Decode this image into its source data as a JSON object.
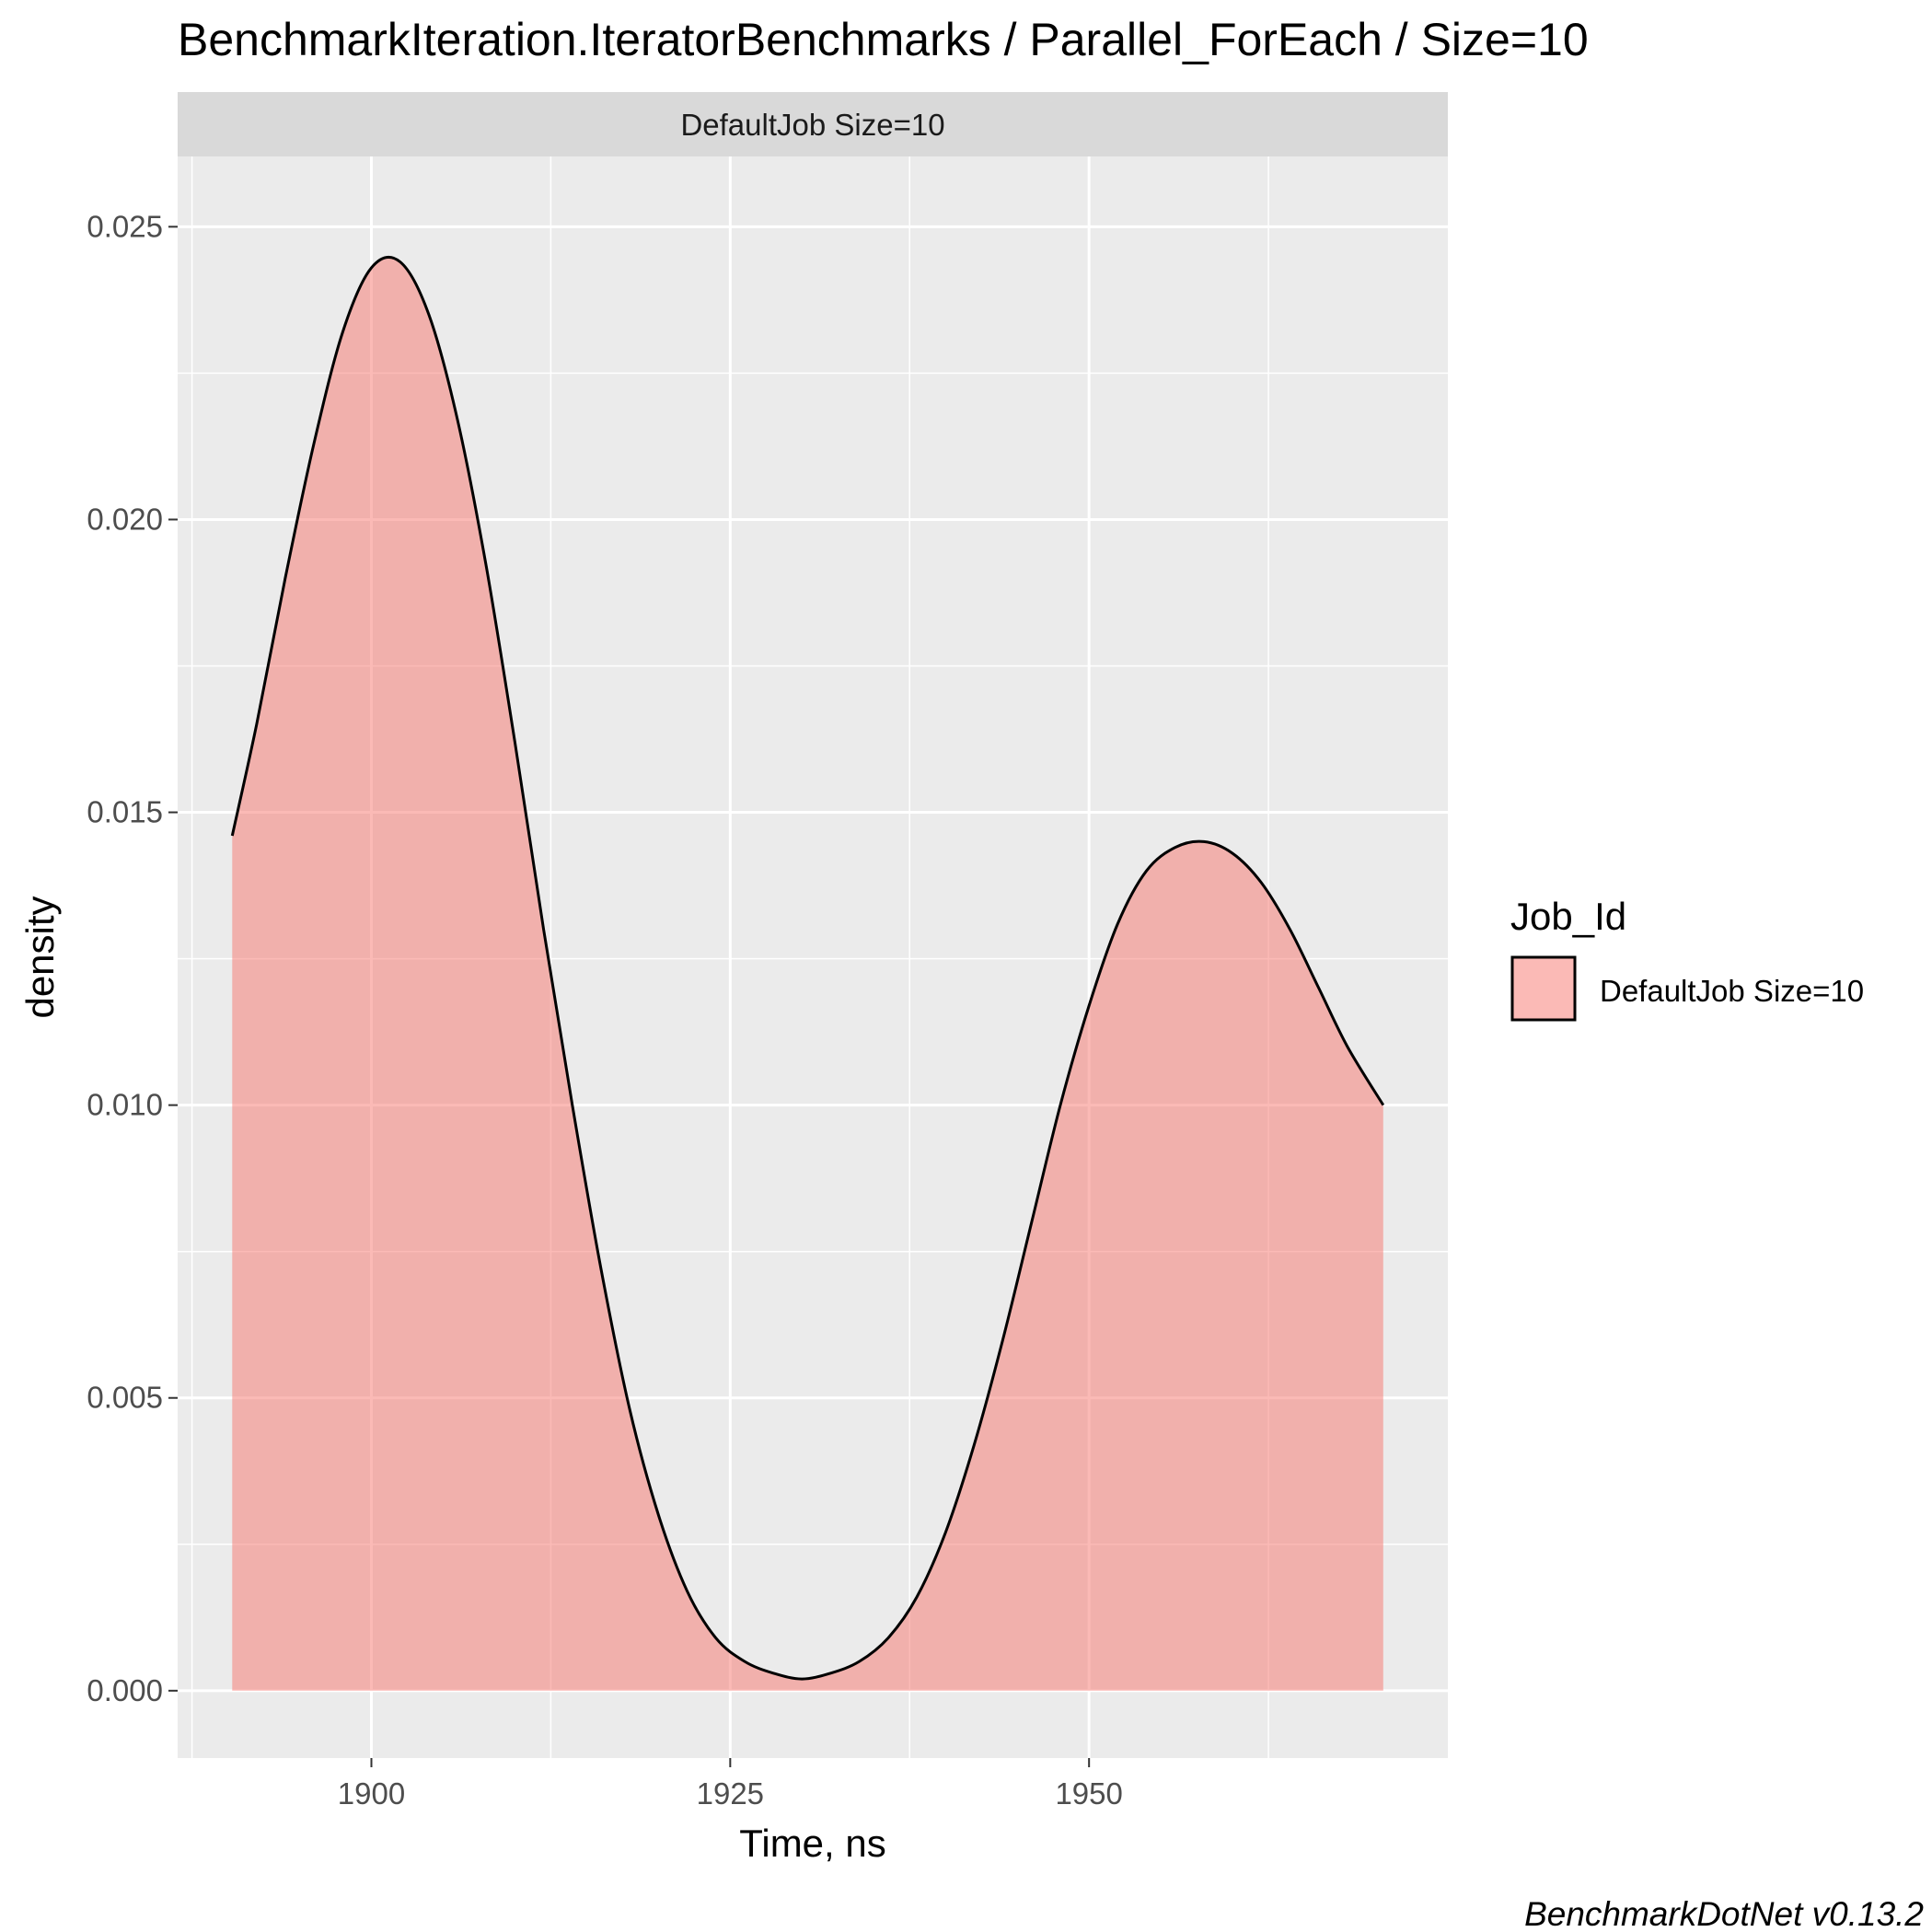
{
  "chart_data": {
    "type": "area",
    "title": "BenchmarkIteration.IteratorBenchmarks / Parallel_ForEach / Size=10",
    "facet_label": "DefaultJob Size=10",
    "xlabel": "Time, ns",
    "ylabel": "density",
    "xlim": [
      1886.5,
      1975
    ],
    "ylim": [
      -0.00115,
      0.0262
    ],
    "x_ticks": [
      1900,
      1925,
      1950
    ],
    "x_tick_labels": [
      "1900",
      "1925",
      "1950"
    ],
    "y_ticks": [
      0.0,
      0.005,
      0.01,
      0.015,
      0.02,
      0.025
    ],
    "y_tick_labels": [
      "0.000",
      "0.005",
      "0.010",
      "0.015",
      "0.020",
      "0.025"
    ],
    "grid": true,
    "legend": {
      "title": "Job_Id",
      "position": "right",
      "entries": [
        "DefaultJob Size=10"
      ]
    },
    "series": [
      {
        "name": "DefaultJob Size=10",
        "fill": "#F8766D",
        "fill_opacity": 0.5,
        "stroke": "#000000",
        "x": [
          1890.3,
          1892.0,
          1894.0,
          1896.0,
          1898.0,
          1900.0,
          1902.0,
          1904.0,
          1906.0,
          1908.0,
          1910.0,
          1912.0,
          1914.0,
          1916.0,
          1918.0,
          1920.0,
          1922.0,
          1924.0,
          1926.0,
          1928.0,
          1930.0,
          1932.0,
          1934.0,
          1936.0,
          1938.0,
          1940.0,
          1942.0,
          1944.0,
          1946.0,
          1948.0,
          1950.0,
          1952.0,
          1954.0,
          1956.0,
          1958.0,
          1960.0,
          1962.0,
          1964.0,
          1966.0,
          1968.0,
          1970.5
        ],
        "y": [
          0.0146,
          0.0165,
          0.019,
          0.0213,
          0.0232,
          0.0243,
          0.0244,
          0.0235,
          0.0217,
          0.0192,
          0.0162,
          0.013,
          0.01,
          0.0072,
          0.0048,
          0.003,
          0.0017,
          0.0009,
          0.0005,
          0.0003,
          0.0002,
          0.0003,
          0.0005,
          0.0009,
          0.0016,
          0.0027,
          0.0042,
          0.006,
          0.008,
          0.01,
          0.0117,
          0.0131,
          0.014,
          0.0144,
          0.0145,
          0.0143,
          0.0138,
          0.013,
          0.012,
          0.011,
          0.01
        ]
      }
    ]
  },
  "caption": "BenchmarkDotNet v0.13.2"
}
